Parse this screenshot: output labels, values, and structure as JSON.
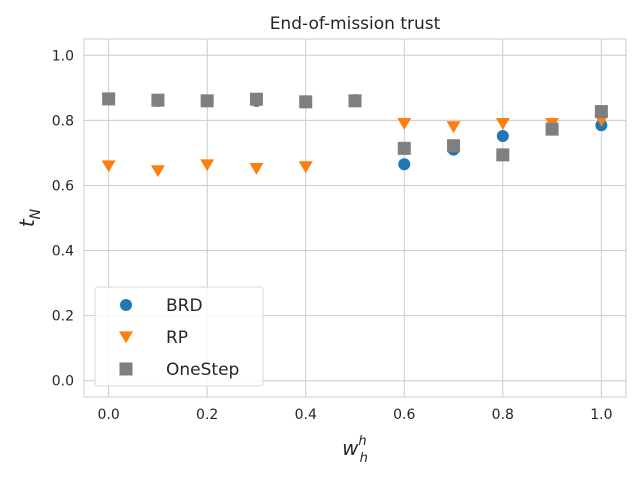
{
  "chart_data": {
    "type": "scatter",
    "title": "End-of-mission trust",
    "xlabel": {
      "base": "w",
      "sup": "h",
      "sub": "h"
    },
    "ylabel": {
      "base": "t",
      "sub": "N"
    },
    "xlim": [
      -0.05,
      1.05
    ],
    "ylim": [
      -0.05,
      1.05
    ],
    "xticks": [
      0.0,
      0.2,
      0.4,
      0.6,
      0.8,
      1.0
    ],
    "xtick_labels": [
      "0.0",
      "0.2",
      "0.4",
      "0.6",
      "0.8",
      "1.0"
    ],
    "yticks": [
      0.0,
      0.2,
      0.4,
      0.6,
      0.8,
      1.0
    ],
    "ytick_labels": [
      "0.0",
      "0.2",
      "0.4",
      "0.6",
      "0.8",
      "1.0"
    ],
    "grid": true,
    "legend_position": "bottom-left",
    "x": [
      0.0,
      0.1,
      0.2,
      0.3,
      0.4,
      0.5,
      0.6,
      0.7,
      0.8,
      0.9,
      1.0
    ],
    "series": [
      {
        "name": "BRD",
        "marker": "circle",
        "color": "#1f77b4",
        "values": [
          0.865,
          0.86,
          0.86,
          0.86,
          0.858,
          0.862,
          0.665,
          0.71,
          0.752,
          0.775,
          0.785
        ]
      },
      {
        "name": "RP",
        "marker": "triangle-down",
        "color": "#ff7f0e",
        "values": [
          0.66,
          0.645,
          0.663,
          0.652,
          0.657,
          0.862,
          0.79,
          0.78,
          0.79,
          0.79,
          0.8
        ]
      },
      {
        "name": "OneStep",
        "marker": "square",
        "color": "#7f7f7f",
        "values": [
          0.866,
          0.862,
          0.86,
          0.865,
          0.857,
          0.86,
          0.714,
          0.722,
          0.694,
          0.773,
          0.827
        ]
      }
    ]
  }
}
